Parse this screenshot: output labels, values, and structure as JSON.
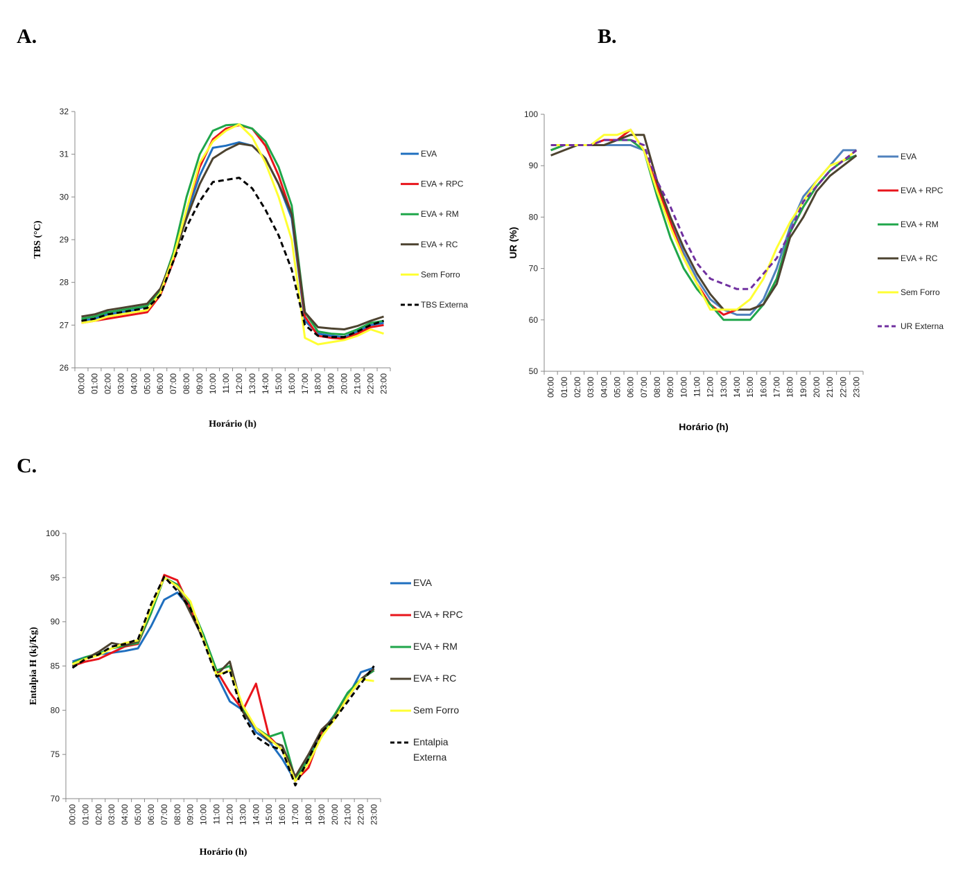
{
  "panel_labels": {
    "a": "A.",
    "b": "B.",
    "c": "C."
  },
  "chart_data": [
    {
      "id": "A",
      "type": "line",
      "xlabel": "Horário (h)",
      "ylabel": "TBS (°C)",
      "ylim": [
        26,
        32
      ],
      "yticks": [
        26,
        27,
        28,
        29,
        30,
        31,
        32
      ],
      "categories": [
        "00:00",
        "01:00",
        "02:00",
        "03:00",
        "04:00",
        "05:00",
        "06:00",
        "07:00",
        "08:00",
        "09:00",
        "10:00",
        "11:00",
        "12:00",
        "13:00",
        "14:00",
        "15:00",
        "16:00",
        "17:00",
        "18:00",
        "19:00",
        "20:00",
        "21:00",
        "22:00",
        "23:00"
      ],
      "legend_position": "right",
      "series": [
        {
          "name": "EVA",
          "color": "#1f6fbf",
          "dashed": false,
          "values": [
            27.1,
            27.15,
            27.25,
            27.3,
            27.35,
            27.45,
            27.8,
            28.6,
            29.6,
            30.5,
            31.15,
            31.2,
            31.28,
            31.2,
            30.9,
            30.3,
            29.5,
            27.1,
            26.8,
            26.75,
            26.72,
            26.85,
            27.0,
            27.05
          ]
        },
        {
          "name": "EVA + RPC",
          "color": "#e8141b",
          "dashed": false,
          "values": [
            27.05,
            27.1,
            27.15,
            27.2,
            27.25,
            27.3,
            27.7,
            28.5,
            29.7,
            30.7,
            31.35,
            31.6,
            31.68,
            31.6,
            31.2,
            30.5,
            29.6,
            27.2,
            26.75,
            26.7,
            26.68,
            26.8,
            26.95,
            27.0
          ]
        },
        {
          "name": "EVA + RM",
          "color": "#1fa64a",
          "dashed": false,
          "values": [
            27.15,
            27.2,
            27.3,
            27.35,
            27.4,
            27.45,
            27.8,
            28.7,
            30.0,
            31.0,
            31.55,
            31.68,
            31.7,
            31.6,
            31.3,
            30.7,
            29.8,
            27.3,
            26.85,
            26.8,
            26.78,
            26.9,
            27.05,
            27.1
          ]
        },
        {
          "name": "EVA + RC",
          "color": "#4d4330",
          "dashed": false,
          "values": [
            27.2,
            27.25,
            27.35,
            27.4,
            27.45,
            27.5,
            27.85,
            28.6,
            29.5,
            30.3,
            30.9,
            31.1,
            31.25,
            31.2,
            30.9,
            30.3,
            29.6,
            27.3,
            26.95,
            26.92,
            26.9,
            26.98,
            27.1,
            27.2
          ]
        },
        {
          "name": "Sem Forro",
          "color": "#ffff33",
          "dashed": false,
          "values": [
            27.05,
            27.1,
            27.2,
            27.25,
            27.3,
            27.35,
            27.75,
            28.6,
            29.7,
            30.8,
            31.3,
            31.55,
            31.7,
            31.4,
            30.8,
            30.0,
            29.0,
            26.7,
            26.55,
            26.6,
            26.65,
            26.75,
            26.9,
            26.8
          ]
        },
        {
          "name": "TBS Externa",
          "color": "#000000",
          "dashed": true,
          "values": [
            27.1,
            27.15,
            27.25,
            27.3,
            27.35,
            27.4,
            27.7,
            28.5,
            29.3,
            29.9,
            30.35,
            30.4,
            30.45,
            30.2,
            29.7,
            29.1,
            28.3,
            27.0,
            26.75,
            26.72,
            26.72,
            26.85,
            27.0,
            27.1
          ]
        }
      ]
    },
    {
      "id": "B",
      "type": "line",
      "xlabel": "Horário (h)",
      "ylabel": "UR  (%)",
      "ylim": [
        50,
        100
      ],
      "yticks": [
        50,
        60,
        70,
        80,
        90,
        100
      ],
      "categories": [
        "00:00",
        "01:00",
        "02:00",
        "03:00",
        "04:00",
        "05:00",
        "06:00",
        "07:00",
        "08:00",
        "09:00",
        "10:00",
        "11:00",
        "12:00",
        "13:00",
        "14:00",
        "15:00",
        "16:00",
        "17:00",
        "18:00",
        "19:00",
        "20:00",
        "21:00",
        "22:00",
        "23:00"
      ],
      "legend_position": "right",
      "series": [
        {
          "name": "EVA",
          "color": "#4f81bd",
          "dashed": false,
          "values": [
            93,
            94,
            94,
            94,
            94,
            94,
            94,
            93,
            86,
            79,
            73,
            68,
            64,
            62,
            61,
            61,
            64,
            70,
            78,
            84,
            87,
            90,
            93,
            93
          ]
        },
        {
          "name": "EVA + RPC",
          "color": "#e8141b",
          "dashed": false,
          "values": [
            93,
            94,
            94,
            94,
            95,
            95,
            97,
            93,
            86,
            79,
            72,
            67,
            63,
            61,
            62,
            62,
            63,
            68,
            77,
            82,
            86,
            89,
            91,
            92
          ]
        },
        {
          "name": "EVA + RM",
          "color": "#1fa64a",
          "dashed": false,
          "values": [
            93,
            94,
            94,
            94,
            94,
            95,
            95,
            93,
            84,
            76,
            70,
            66,
            63,
            60,
            60,
            60,
            63,
            68,
            77,
            82,
            86,
            89,
            91,
            92
          ]
        },
        {
          "name": "EVA + RC",
          "color": "#4d4330",
          "dashed": false,
          "values": [
            92,
            93,
            94,
            94,
            94,
            95,
            96,
            96,
            87,
            80,
            74,
            69,
            65,
            62,
            62,
            62,
            63,
            67,
            76,
            80,
            85,
            88,
            90,
            92
          ]
        },
        {
          "name": "Sem Forro",
          "color": "#ffff33",
          "dashed": false,
          "values": [
            94,
            94,
            94,
            94,
            96,
            96,
            97,
            93,
            85,
            78,
            72,
            67,
            62,
            62,
            62,
            64,
            68,
            74,
            79,
            83,
            87,
            90,
            91,
            93
          ]
        },
        {
          "name": "UR Externa",
          "color": "#7030a0",
          "dashed": true,
          "values": [
            94,
            94,
            94,
            94,
            95,
            95,
            95,
            94,
            87,
            82,
            76,
            71,
            68,
            67,
            66,
            66,
            69,
            72,
            77,
            83,
            86,
            89,
            91,
            93
          ]
        }
      ]
    },
    {
      "id": "C",
      "type": "line",
      "xlabel": "Horário (h)",
      "ylabel": "Entalpia H (kj/Kg)",
      "ylim": [
        70,
        100
      ],
      "yticks": [
        70,
        75,
        80,
        85,
        90,
        95,
        100
      ],
      "categories": [
        "00:00",
        "01:00",
        "02:00",
        "03:00",
        "04:00",
        "05:00",
        "06:00",
        "07:00",
        "08:00",
        "09:00",
        "10:00",
        "11:00",
        "12:00",
        "13:00",
        "14:00",
        "15:00",
        "16:00",
        "17:00",
        "18:00",
        "19:00",
        "20:00",
        "21:00",
        "22:00",
        "23:00"
      ],
      "legend_position": "right",
      "series": [
        {
          "name": "EVA",
          "color": "#1f6fbf",
          "dashed": false,
          "values": [
            85.5,
            86.0,
            86.3,
            86.5,
            86.7,
            87.0,
            89.5,
            92.5,
            93.3,
            91.5,
            88.5,
            84.0,
            81.0,
            80.0,
            77.5,
            76.5,
            74.5,
            72.0,
            74.5,
            77.5,
            79.5,
            81.5,
            84.3,
            84.8
          ]
        },
        {
          "name": "EVA + RPC",
          "color": "#e8141b",
          "dashed": false,
          "values": [
            85.0,
            85.5,
            85.8,
            86.5,
            87.2,
            87.5,
            91.0,
            95.3,
            94.7,
            91.5,
            88.0,
            84.5,
            82.0,
            80.0,
            83.0,
            77.0,
            75.5,
            72.0,
            73.5,
            77.5,
            79.0,
            81.5,
            83.5,
            84.5
          ]
        },
        {
          "name": "EVA + RM",
          "color": "#1fa64a",
          "dashed": false,
          "values": [
            85.3,
            86.0,
            86.4,
            87.0,
            87.3,
            87.6,
            91.0,
            95.0,
            94.2,
            92.0,
            88.5,
            84.5,
            85.0,
            80.2,
            78.0,
            77.0,
            77.5,
            72.2,
            74.5,
            77.0,
            79.5,
            82.0,
            83.5,
            84.5
          ]
        },
        {
          "name": "EVA + RC",
          "color": "#4d4330",
          "dashed": false,
          "values": [
            85.0,
            85.8,
            86.6,
            87.6,
            87.3,
            87.8,
            91.5,
            95.0,
            94.0,
            91.0,
            88.0,
            84.0,
            85.5,
            79.8,
            78.0,
            76.5,
            76.0,
            72.5,
            75.0,
            77.8,
            79.2,
            81.5,
            83.5,
            84.7
          ]
        },
        {
          "name": "Sem Forro",
          "color": "#ffff33",
          "dashed": false,
          "values": [
            85.2,
            85.8,
            86.2,
            87.0,
            87.6,
            87.9,
            91.5,
            95.0,
            94.0,
            92.3,
            88.0,
            84.0,
            84.5,
            80.5,
            78.0,
            76.8,
            75.5,
            72.0,
            74.0,
            77.0,
            79.0,
            81.5,
            83.5,
            83.3
          ]
        },
        {
          "name": "Entalpia Externa",
          "color": "#000000",
          "dashed": true,
          "values": [
            84.8,
            85.8,
            86.3,
            87.2,
            87.5,
            88.0,
            92.0,
            95.1,
            93.5,
            91.5,
            87.8,
            83.8,
            84.5,
            79.5,
            77.0,
            76.0,
            75.5,
            71.5,
            74.5,
            77.5,
            79.0,
            81.0,
            83.0,
            85.0
          ]
        }
      ]
    }
  ]
}
